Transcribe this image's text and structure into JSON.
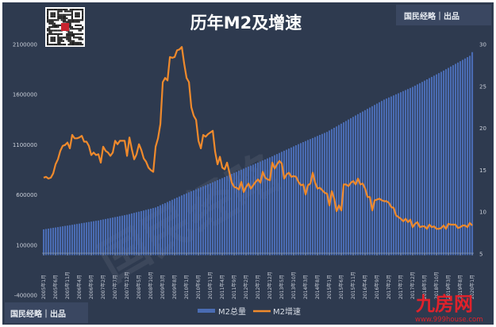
{
  "chart_data": {
    "type": "bar+line",
    "title": "历年M2及增速",
    "categories_start": "2005-01",
    "categories_end": "2020-01",
    "x_tick_labels": [
      "2005年1月",
      "2005年6月",
      "2005年11月",
      "2006年4月",
      "2006年9月",
      "2007年2月",
      "2007年7月",
      "2007年12月",
      "2008年5月",
      "2008年10月",
      "2009年3月",
      "2009年8月",
      "2010年1月",
      "2010年6月",
      "2010年11月",
      "2011年4月",
      "2011年9月",
      "2012年2月",
      "2012年7月",
      "2012年12月",
      "2013年5月",
      "2013年10月",
      "2014年3月",
      "2014年8月",
      "2015年1月",
      "2015年6月",
      "2015年11月",
      "2016年4月",
      "2016年9月",
      "2017年2月",
      "2017年7月",
      "2017年12月",
      "2018年5月",
      "2018年10月",
      "2019年3月",
      "2019年8月",
      "2020年1月"
    ],
    "y_left": {
      "min": -400000,
      "max": 2100000,
      "ticks": [
        "2100000",
        "1600000",
        "1100000",
        "600000",
        "100000",
        "-400000"
      ]
    },
    "y_right": {
      "min": 5,
      "max": 30,
      "ticks": [
        "30",
        "25",
        "20",
        "15",
        "10",
        "5"
      ]
    },
    "grid": false,
    "legend_position": "bottom",
    "series": [
      {
        "name": "M2总量",
        "type": "bar",
        "axis": "left",
        "color": "#4a6cb3",
        "values": [
          257000,
          260800,
          264600,
          268400,
          272200,
          276000,
          279800,
          283600,
          287400,
          291200,
          295000,
          298800,
          302700,
          306600,
          310500,
          314400,
          318300,
          322200,
          326100,
          330000,
          333900,
          337800,
          341700,
          345600,
          350400,
          355200,
          360000,
          364900,
          369700,
          374500,
          379300,
          384100,
          388900,
          393800,
          398600,
          403400,
          409400,
          415400,
          421400,
          427300,
          433300,
          439300,
          445300,
          451300,
          457200,
          463200,
          469200,
          475200,
          486100,
          497000,
          507900,
          518900,
          529800,
          540700,
          551600,
          562500,
          573500,
          584400,
          595300,
          606200,
          616200,
          626100,
          636100,
          646100,
          656000,
          666000,
          676000,
          685900,
          695900,
          705900,
          715800,
          725800,
          736300,
          746800,
          757300,
          767700,
          778200,
          788700,
          799200,
          809700,
          820200,
          830600,
          841100,
          851600,
          861800,
          872000,
          882200,
          892400,
          902600,
          912900,
          923100,
          933300,
          943500,
          953700,
          963900,
          974100,
          985100,
          996200,
          1007200,
          1018200,
          1029300,
          1040300,
          1051300,
          1062400,
          1073400,
          1084400,
          1095500,
          1106500,
          1116700,
          1126800,
          1137000,
          1147100,
          1157300,
          1167500,
          1177600,
          1187800,
          1197900,
          1208100,
          1218200,
          1228400,
          1242100,
          1255700,
          1269400,
          1283000,
          1296700,
          1310300,
          1324000,
          1337700,
          1351300,
          1365000,
          1378600,
          1392300,
          1405500,
          1418600,
          1431800,
          1444900,
          1458100,
          1471200,
          1484400,
          1497500,
          1510700,
          1523800,
          1537000,
          1550100,
          1560700,
          1571200,
          1581800,
          1592300,
          1602900,
          1613400,
          1624000,
          1634600,
          1645100,
          1655700,
          1666200,
          1676800,
          1689300,
          1701800,
          1714300,
          1726800,
          1739200,
          1751700,
          1764200,
          1776700,
          1789100,
          1801600,
          1814100,
          1826700,
          1840000,
          1853300,
          1866600,
          1880000,
          1893300,
          1906600,
          1919900,
          1933200,
          1946500,
          1959800,
          1973200,
          1986500,
          2023000
        ]
      },
      {
        "name": "M2增速",
        "type": "line",
        "axis": "right",
        "color": "#f08a2c",
        "values": [
          14.1,
          14.2,
          14.0,
          14.1,
          14.6,
          15.7,
          16.3,
          17.3,
          17.9,
          18.0,
          18.3,
          17.6,
          19.2,
          18.8,
          18.8,
          18.9,
          19.1,
          18.4,
          18.4,
          17.9,
          16.8,
          17.1,
          16.8,
          16.9,
          15.9,
          17.8,
          17.3,
          17.1,
          16.7,
          17.1,
          18.5,
          18.1,
          18.5,
          18.5,
          18.5,
          16.7,
          18.9,
          17.5,
          16.3,
          16.9,
          18.1,
          17.4,
          16.4,
          16.0,
          15.3,
          15.0,
          14.8,
          17.8,
          18.8,
          20.5,
          25.5,
          26.0,
          25.7,
          28.5,
          28.4,
          28.5,
          29.3,
          29.4,
          29.7,
          27.7,
          26.0,
          25.5,
          22.5,
          21.5,
          21.0,
          18.5,
          17.6,
          19.2,
          19.0,
          19.3,
          19.5,
          19.7,
          17.2,
          15.7,
          16.6,
          15.3,
          15.1,
          15.9,
          14.7,
          13.5,
          13.0,
          12.9,
          12.7,
          13.6,
          12.4,
          13.0,
          13.4,
          12.8,
          13.2,
          13.6,
          13.9,
          13.5,
          14.8,
          14.1,
          13.9,
          13.8,
          15.9,
          15.2,
          15.7,
          16.1,
          15.8,
          14.0,
          14.5,
          14.7,
          14.2,
          14.3,
          14.2,
          13.6,
          13.2,
          13.3,
          12.1,
          13.2,
          13.4,
          14.7,
          13.5,
          12.8,
          12.9,
          12.6,
          12.3,
          12.2,
          10.8,
          12.5,
          11.6,
          10.1,
          10.8,
          10.2,
          13.3,
          13.3,
          13.1,
          13.5,
          13.7,
          13.3,
          14.0,
          13.3,
          13.4,
          12.8,
          11.8,
          11.8,
          10.2,
          11.4,
          11.5,
          11.6,
          11.4,
          11.3,
          11.3,
          11.1,
          10.6,
          10.5,
          9.6,
          9.4,
          9.2,
          8.9,
          9.2,
          8.8,
          9.1,
          8.2,
          8.6,
          8.8,
          8.2,
          8.3,
          8.3,
          8.0,
          8.5,
          8.2,
          8.3,
          8.0,
          8.0,
          8.1,
          8.4,
          8.0,
          8.6,
          8.5,
          8.5,
          8.5,
          8.1,
          8.2,
          8.4,
          8.4,
          8.2,
          8.7,
          8.4
        ]
      }
    ]
  },
  "branding": {
    "top_right": "国民经略｜出品",
    "bottom_left": "国民经略｜出品",
    "watermark": "国民经略",
    "site_logo": "九房网",
    "site_url": "www.999house.com"
  },
  "colors": {
    "background": "#2e3a4f",
    "bar": "#4a6cb3",
    "line": "#f08a2c"
  }
}
